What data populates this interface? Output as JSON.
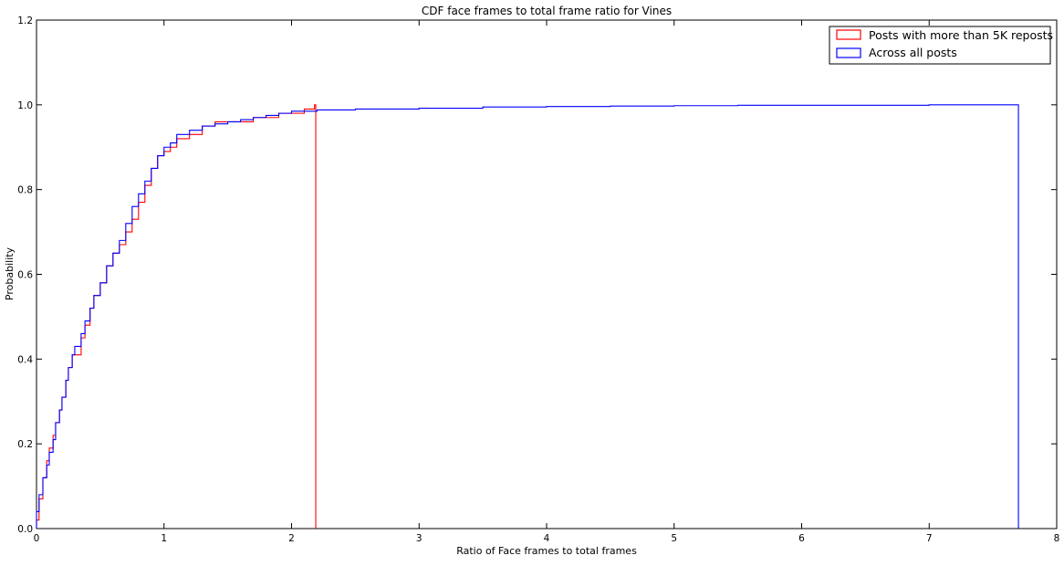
{
  "chart_data": {
    "type": "line",
    "title": "CDF face frames to total frame ratio for Vines",
    "xlabel": "Ratio of Face frames to total frames",
    "ylabel": "Probability",
    "xlim": [
      0,
      8
    ],
    "ylim": [
      0,
      1.2
    ],
    "x_ticks": [
      "0",
      "1",
      "2",
      "3",
      "4",
      "5",
      "6",
      "7",
      "8"
    ],
    "y_ticks": [
      "0.0",
      "0.2",
      "0.4",
      "0.6",
      "0.8",
      "1.0",
      "1.2"
    ],
    "grid": false,
    "legend_position": "top-right",
    "series": [
      {
        "name": "Posts with more than 5K reposts",
        "color": "#ff0000",
        "drawstyle": "steps-post",
        "x": [
          0,
          0.02,
          0.05,
          0.08,
          0.1,
          0.13,
          0.15,
          0.18,
          0.2,
          0.23,
          0.25,
          0.28,
          0.3,
          0.35,
          0.38,
          0.42,
          0.45,
          0.5,
          0.55,
          0.6,
          0.65,
          0.7,
          0.75,
          0.8,
          0.85,
          0.9,
          0.95,
          1.0,
          1.05,
          1.1,
          1.2,
          1.3,
          1.4,
          1.5,
          1.6,
          1.7,
          1.8,
          1.9,
          2.0,
          2.1,
          2.15,
          2.18,
          2.19
        ],
        "y": [
          0.02,
          0.07,
          0.12,
          0.16,
          0.19,
          0.22,
          0.25,
          0.28,
          0.31,
          0.35,
          0.38,
          0.41,
          0.41,
          0.45,
          0.48,
          0.52,
          0.55,
          0.58,
          0.62,
          0.65,
          0.67,
          0.7,
          0.73,
          0.77,
          0.81,
          0.85,
          0.88,
          0.89,
          0.9,
          0.92,
          0.93,
          0.95,
          0.96,
          0.96,
          0.96,
          0.97,
          0.97,
          0.98,
          0.98,
          0.99,
          0.99,
          1.0,
          0.0
        ]
      },
      {
        "name": "Across all posts",
        "color": "#0000ff",
        "drawstyle": "steps-post",
        "x": [
          0,
          0.02,
          0.05,
          0.08,
          0.1,
          0.13,
          0.15,
          0.18,
          0.2,
          0.23,
          0.25,
          0.28,
          0.3,
          0.35,
          0.38,
          0.42,
          0.45,
          0.5,
          0.55,
          0.6,
          0.65,
          0.7,
          0.75,
          0.8,
          0.85,
          0.9,
          0.95,
          1.0,
          1.05,
          1.1,
          1.2,
          1.3,
          1.4,
          1.5,
          1.6,
          1.7,
          1.8,
          1.9,
          2.0,
          2.2,
          2.5,
          3.0,
          3.5,
          4.0,
          4.5,
          5.0,
          5.5,
          6.0,
          6.5,
          7.0,
          7.5,
          7.69,
          7.7
        ],
        "y": [
          0.04,
          0.08,
          0.12,
          0.15,
          0.18,
          0.21,
          0.25,
          0.28,
          0.31,
          0.35,
          0.38,
          0.41,
          0.43,
          0.46,
          0.49,
          0.52,
          0.55,
          0.58,
          0.62,
          0.65,
          0.68,
          0.72,
          0.76,
          0.79,
          0.82,
          0.85,
          0.88,
          0.9,
          0.91,
          0.93,
          0.94,
          0.95,
          0.955,
          0.96,
          0.965,
          0.97,
          0.975,
          0.98,
          0.985,
          0.988,
          0.99,
          0.992,
          0.995,
          0.996,
          0.997,
          0.998,
          0.999,
          0.999,
          0.999,
          1.0,
          1.0,
          1.0,
          0.0
        ]
      }
    ]
  }
}
